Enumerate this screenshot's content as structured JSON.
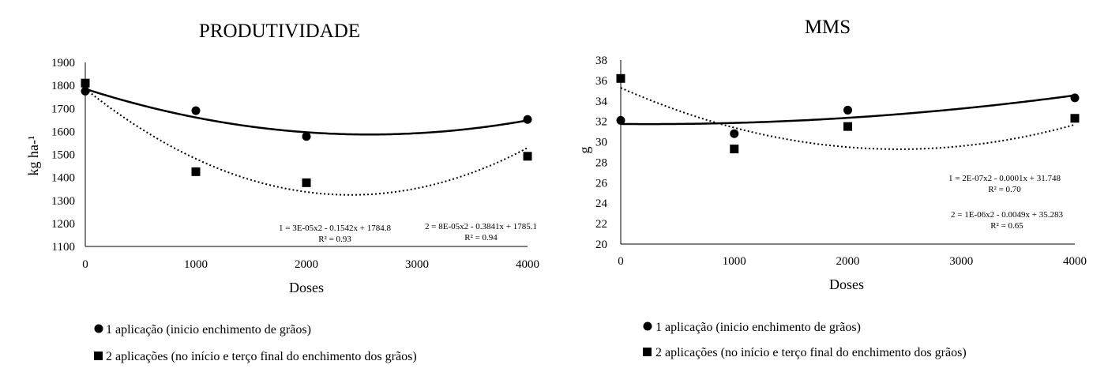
{
  "chart_data": [
    {
      "type": "scatter",
      "title": "PRODUTIVIDADE",
      "xlabel": "Doses",
      "ylabel": "kg ha-¹",
      "xlim": [
        0,
        4000
      ],
      "ylim": [
        1100,
        1900
      ],
      "xticks": [
        "0",
        "1000",
        "2000",
        "3000",
        "4000"
      ],
      "yticks": [
        "1100",
        "1200",
        "1300",
        "1400",
        "1500",
        "1600",
        "1700",
        "1800",
        "1900"
      ],
      "grid": false,
      "series": [
        {
          "marker": "circle",
          "x": [
            0,
            1000,
            2000,
            4000
          ],
          "y": [
            1775,
            1690,
            1578,
            1652
          ],
          "trendline": {
            "type": "polynomial",
            "a": 3e-05,
            "b": -0.1542,
            "c": 1784.8,
            "style": "solid"
          },
          "equation": "1 = 3E-05x2  - 0.1542x + 1784.8",
          "r2": "R² = 0.93"
        },
        {
          "marker": "square",
          "x": [
            0,
            1000,
            2000,
            4000
          ],
          "y": [
            1810,
            1425,
            1377,
            1492
          ],
          "trendline": {
            "type": "polynomial",
            "a": 8e-05,
            "b": -0.3841,
            "c": 1785.1,
            "style": "dotted"
          },
          "equation": "2 = 8E-05x2  - 0.3841x + 1785.1",
          "r2": "R² = 0.94"
        }
      ]
    },
    {
      "type": "scatter",
      "title": "MMS",
      "xlabel": "Doses",
      "ylabel": "g",
      "xlim": [
        0,
        4000
      ],
      "ylim": [
        20,
        38
      ],
      "xticks": [
        "0",
        "1000",
        "2000",
        "3000",
        "4000"
      ],
      "yticks": [
        "20",
        "22",
        "24",
        "26",
        "28",
        "30",
        "32",
        "34",
        "36",
        "38"
      ],
      "grid": false,
      "series": [
        {
          "marker": "circle",
          "x": [
            0,
            1000,
            2000,
            4000
          ],
          "y": [
            32.1,
            30.8,
            33.1,
            34.3
          ],
          "trendline": {
            "type": "polynomial",
            "a": 2e-07,
            "b": -0.0001,
            "c": 31.748,
            "style": "solid"
          },
          "equation": "1 = 2E-07x2  - 0.0001x + 31.748",
          "r2": "R² = 0.70"
        },
        {
          "marker": "square",
          "x": [
            0,
            1000,
            2000,
            4000
          ],
          "y": [
            36.2,
            29.3,
            31.5,
            32.3
          ],
          "trendline": {
            "type": "polynomial",
            "a": 1e-06,
            "b": -0.0049,
            "c": 35.283,
            "style": "dotted"
          },
          "equation": "2 = 1E-06x2  - 0.0049x + 35.283",
          "r2": "R² = 0.65"
        }
      ]
    }
  ],
  "legend": [
    {
      "marker": "circle",
      "label": "1 aplicação (inicio enchimento de grãos)"
    },
    {
      "marker": "square",
      "label": "2 aplicações (no início e terço final do enchimento dos grãos)"
    }
  ]
}
